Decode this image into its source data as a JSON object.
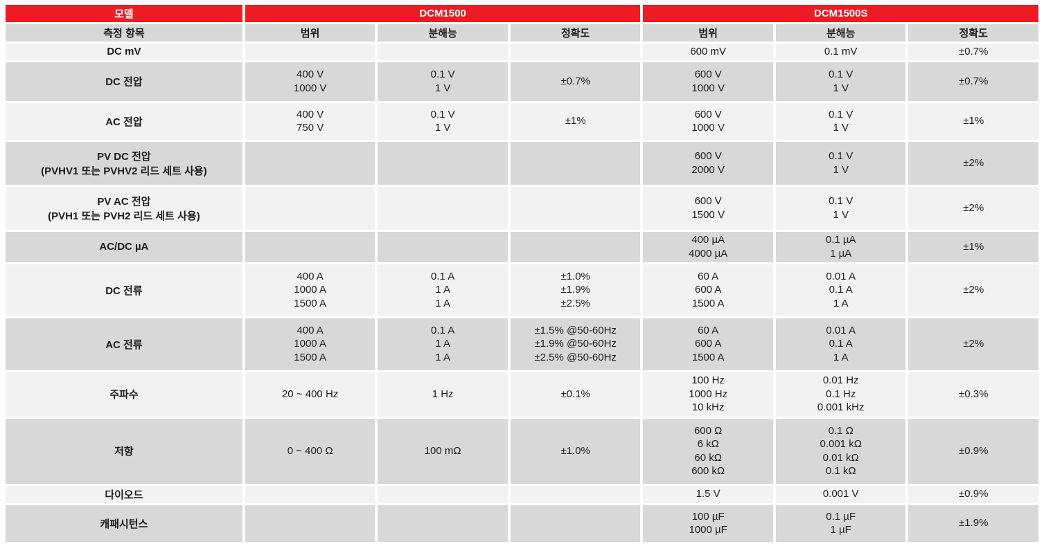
{
  "colors": {
    "accent_red": "#ed1c24",
    "row_light": "#f2f2f2",
    "row_dark": "#d8d8d8",
    "text": "#1c1c1c"
  },
  "header": {
    "model_label": "모델",
    "model_1": "DCM1500",
    "model_2": "DCM1500S",
    "item_label": "측정 항목",
    "range_label_1": "범위",
    "resolution_label_1": "분해능",
    "accuracy_label_1": "정확도",
    "range_label_2": "범위",
    "resolution_label_2": "분해능",
    "accuracy_label_2": "정확도"
  },
  "rows": [
    {
      "item": "DC mV",
      "m1_range": "",
      "m1_resolution": "",
      "m1_accuracy": "",
      "m2_range": "600 mV",
      "m2_resolution": "0.1 mV",
      "m2_accuracy": "±0.7%"
    },
    {
      "item": "DC 전압",
      "m1_range": "400 V\n1000 V",
      "m1_resolution": "0.1 V\n1 V",
      "m1_accuracy": "±0.7%",
      "m2_range": "600 V\n1000 V",
      "m2_resolution": "0.1 V\n1 V",
      "m2_accuracy": "±0.7%"
    },
    {
      "item": "AC 전압",
      "m1_range": "400 V\n750 V",
      "m1_resolution": "0.1 V\n1 V",
      "m1_accuracy": "±1%",
      "m2_range": "600 V\n1000 V",
      "m2_resolution": "0.1 V\n1 V",
      "m2_accuracy": "±1%"
    },
    {
      "item": "PV DC 전압\n(PVHV1 또는 PVHV2 리드 세트 사용)",
      "m1_range": "",
      "m1_resolution": "",
      "m1_accuracy": "",
      "m2_range": "600 V\n2000 V",
      "m2_resolution": "0.1 V\n1 V",
      "m2_accuracy": "±2%"
    },
    {
      "item": "PV AC 전압\n(PVH1 또는 PVH2 리드 세트 사용)",
      "m1_range": "",
      "m1_resolution": "",
      "m1_accuracy": "",
      "m2_range": "600 V\n1500 V",
      "m2_resolution": "0.1 V\n1 V",
      "m2_accuracy": "±2%"
    },
    {
      "item": "AC/DC µA",
      "m1_range": "",
      "m1_resolution": "",
      "m1_accuracy": "",
      "m2_range": "400 µA\n4000 µA",
      "m2_resolution": "0.1 µA\n1 µA",
      "m2_accuracy": "±1%"
    },
    {
      "item": "DC 전류",
      "m1_range": "400 A\n1000 A\n1500 A",
      "m1_resolution": "0.1 A\n1 A\n1 A",
      "m1_accuracy": "±1.0%\n±1.9%\n±2.5%",
      "m2_range": "60 A\n600 A\n1500 A",
      "m2_resolution": "0.01 A\n0.1 A\n1 A",
      "m2_accuracy": "±2%"
    },
    {
      "item": "AC 전류",
      "m1_range": "400 A\n1000 A\n1500 A",
      "m1_resolution": "0.1 A\n1 A\n1 A",
      "m1_accuracy": "±1.5% @50-60Hz\n±1.9% @50-60Hz\n±2.5% @50-60Hz",
      "m2_range": "60 A\n600 A\n1500 A",
      "m2_resolution": "0.01 A\n0.1 A\n1 A",
      "m2_accuracy": "±2%"
    },
    {
      "item": "주파수",
      "m1_range": "20 ~ 400 Hz",
      "m1_resolution": "1 Hz",
      "m1_accuracy": "±0.1%",
      "m2_range": "100 Hz\n1000 Hz\n10 kHz",
      "m2_resolution": "0.01 Hz\n0.1 Hz\n0.001 kHz",
      "m2_accuracy": "±0.3%"
    },
    {
      "item": "저항",
      "m1_range": "0 ~ 400 Ω",
      "m1_resolution": "100 mΩ",
      "m1_accuracy": "±1.0%",
      "m2_range": "600 Ω\n6 kΩ\n60 kΩ\n600 kΩ",
      "m2_resolution": "0.1 Ω\n0.001 kΩ\n0.01 kΩ\n0.1 kΩ",
      "m2_accuracy": "±0.9%"
    },
    {
      "item": "다이오드",
      "m1_range": "",
      "m1_resolution": "",
      "m1_accuracy": "",
      "m2_range": "1.5 V",
      "m2_resolution": "0.001 V",
      "m2_accuracy": "±0.9%"
    },
    {
      "item": "캐패시턴스",
      "m1_range": "",
      "m1_resolution": "",
      "m1_accuracy": "",
      "m2_range": "100 µF\n1000 µF",
      "m2_resolution": "0.1 µF\n1 µF",
      "m2_accuracy": "±1.9%"
    }
  ]
}
